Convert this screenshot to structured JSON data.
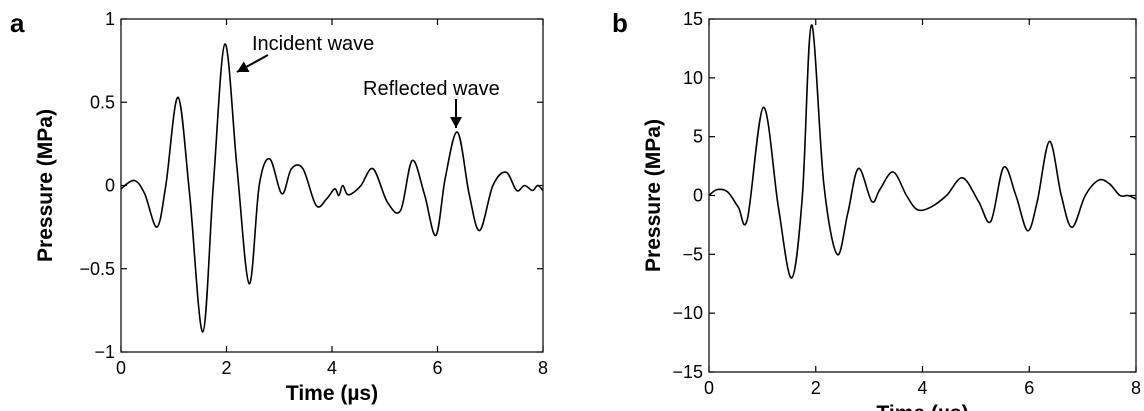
{
  "chart_data": [
    {
      "panel_label": "a",
      "type": "line",
      "xlabel": "Time (µs)",
      "ylabel": "Pressure (MPa)",
      "xlim": [
        0,
        8
      ],
      "ylim": [
        -1,
        1
      ],
      "xticks": [
        0,
        2,
        4,
        6,
        8
      ],
      "yticks": [
        -1,
        -0.5,
        0,
        0.5,
        1
      ],
      "ytick_labels": [
        "−1",
        "−0.5",
        "0",
        "0.5",
        "1"
      ],
      "grid": false,
      "series": [
        {
          "x": [
            0,
            0.25,
            0.45,
            0.68,
            0.85,
            1.08,
            1.3,
            1.55,
            1.75,
            1.97,
            2.2,
            2.43,
            2.62,
            2.82,
            3.05,
            3.23,
            3.45,
            3.7,
            3.9,
            4.05,
            4.13,
            4.2,
            4.28,
            4.37,
            4.55,
            4.78,
            5.05,
            5.3,
            5.52,
            5.75,
            5.97,
            6.15,
            6.38,
            6.6,
            6.8,
            7.05,
            7.3,
            7.5,
            7.65,
            7.8,
            7.9,
            8.0
          ],
          "y": [
            -0.02,
            0.03,
            -0.05,
            -0.25,
            0.0,
            0.53,
            -0.05,
            -0.88,
            0.0,
            0.85,
            0.1,
            -0.59,
            0.0,
            0.16,
            -0.05,
            0.1,
            0.1,
            -0.12,
            -0.08,
            -0.02,
            -0.06,
            0.0,
            -0.05,
            -0.05,
            0.0,
            0.1,
            -0.1,
            -0.15,
            0.15,
            -0.05,
            -0.3,
            0.05,
            0.32,
            -0.05,
            -0.27,
            0.0,
            0.08,
            -0.03,
            0.0,
            -0.03,
            0.0,
            -0.03
          ]
        }
      ],
      "annotations": [
        {
          "text": "Incident wave",
          "x": 1.97,
          "y": 0.85
        },
        {
          "text": "Reflected wave",
          "x": 6.38,
          "y": 0.32
        }
      ]
    },
    {
      "panel_label": "b",
      "type": "line",
      "xlabel": "Time (µs)",
      "ylabel": "Pressure (MPa)",
      "xlim": [
        0,
        8
      ],
      "ylim": [
        -15,
        15
      ],
      "xticks": [
        0,
        2,
        4,
        6,
        8
      ],
      "yticks": [
        -15,
        -10,
        -5,
        0,
        5,
        10,
        15
      ],
      "ytick_labels": [
        "−15",
        "−10",
        "−5",
        "0",
        "5",
        "10",
        "15"
      ],
      "grid": false,
      "series": [
        {
          "x": [
            0,
            0.15,
            0.35,
            0.55,
            0.72,
            1.02,
            1.3,
            1.55,
            1.75,
            1.92,
            2.15,
            2.4,
            2.6,
            2.8,
            3.05,
            3.2,
            3.45,
            3.7,
            3.9,
            4.15,
            4.45,
            4.75,
            5.05,
            5.28,
            5.52,
            5.75,
            5.97,
            6.15,
            6.38,
            6.6,
            6.8,
            7.05,
            7.3,
            7.5,
            7.7,
            7.85,
            8.0
          ],
          "y": [
            0.0,
            0.5,
            0.3,
            -1.0,
            -2.0,
            7.5,
            -1.0,
            -7.0,
            0.0,
            14.5,
            1.0,
            -5.0,
            -1.5,
            2.3,
            -0.5,
            0.5,
            2.0,
            0.0,
            -1.2,
            -1.0,
            0.0,
            1.5,
            -0.5,
            -2.2,
            2.4,
            0.0,
            -3.0,
            -0.5,
            4.6,
            0.0,
            -2.7,
            0.0,
            1.3,
            1.0,
            0.0,
            0.0,
            -0.3
          ]
        }
      ],
      "annotations": []
    }
  ]
}
